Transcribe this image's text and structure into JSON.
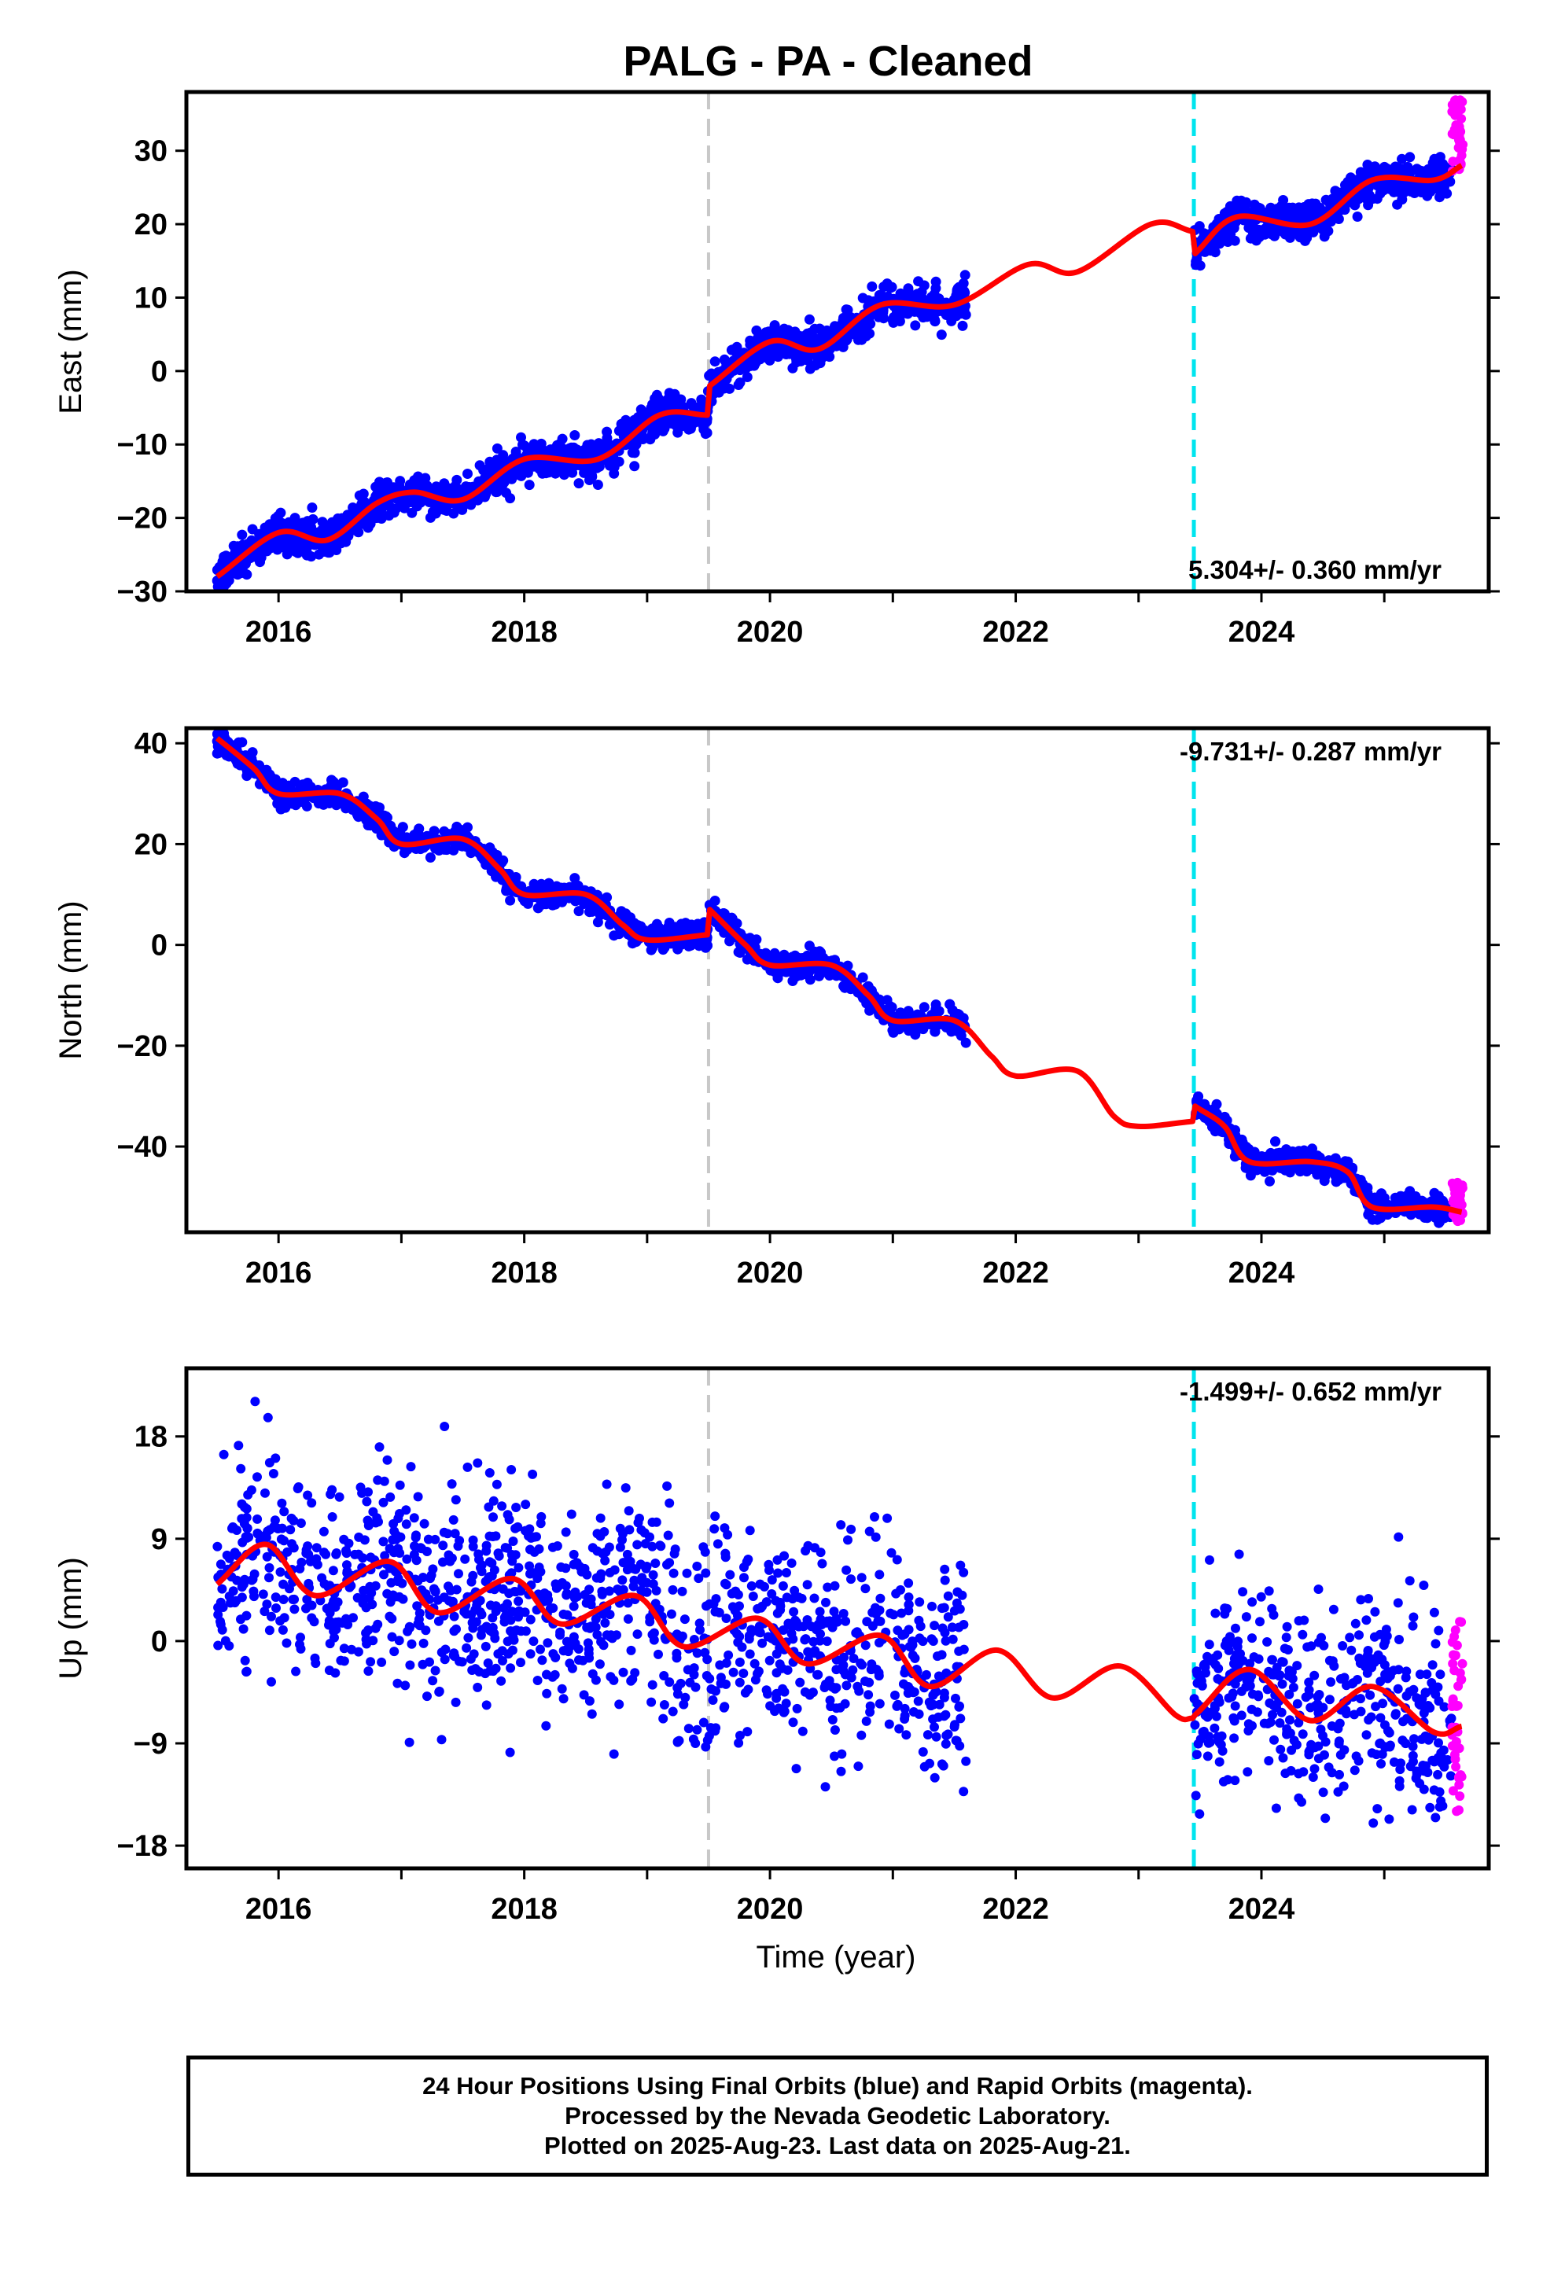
{
  "title": "PALG  - PA - Cleaned",
  "xlabel": "Time (year)",
  "footer": {
    "line1": "24 Hour Positions Using Final Orbits (blue) and Rapid Orbits (magenta).",
    "line2": "Processed by the Nevada Geodetic Laboratory.",
    "line3": "Plotted on 2025-Aug-23. Last data on 2025-Aug-21."
  },
  "colors": {
    "final_orbits": "#0000ff",
    "rapid_orbits": "#ff00ff",
    "model_fit": "#ff0000",
    "event_line_1": "#c8c8c8",
    "event_line_2": "#00e5ee"
  },
  "chart_data": [
    {
      "type": "scatter",
      "component": "east",
      "ylabel": "East (mm)",
      "xlim": [
        2015.25,
        2025.85
      ],
      "ylim": [
        -30,
        38
      ],
      "xticks": [
        2016,
        2018,
        2020,
        2022,
        2024
      ],
      "yticks": [
        -30,
        -20,
        -10,
        0,
        10,
        20,
        30
      ],
      "grid": false,
      "rate_label": "5.304+/- 0.360 mm/yr",
      "rate_label_position": "bottom-right",
      "event_lines": [
        {
          "x": 2019.5,
          "color": "gray"
        },
        {
          "x": 2023.45,
          "color": "cyan"
        }
      ],
      "data_gap": [
        2021.6,
        2023.45
      ],
      "final_orbit_scatter_mm": 1.2,
      "rapid_orbits": {
        "x_range": [
          2025.55,
          2025.64
        ],
        "y_range": [
          27,
          37
        ]
      },
      "model_fit": {
        "x": [
          2015.5,
          2016.0,
          2016.4,
          2016.8,
          2017.1,
          2017.5,
          2018.0,
          2018.6,
          2019.1,
          2019.49,
          2019.51,
          2020.0,
          2020.4,
          2020.9,
          2021.5,
          2022.1,
          2022.5,
          2023.1,
          2023.44,
          2023.46,
          2023.8,
          2024.4,
          2024.9,
          2025.4,
          2025.63
        ],
        "y": [
          -28,
          -22,
          -23,
          -18,
          -16.5,
          -17.5,
          -12,
          -12,
          -6,
          -6,
          -2,
          4,
          3,
          9,
          9,
          14.5,
          13.5,
          20,
          19,
          16,
          21,
          20,
          26,
          26,
          28
        ]
      }
    },
    {
      "type": "scatter",
      "component": "north",
      "ylabel": "North (mm)",
      "xlim": [
        2015.25,
        2025.85
      ],
      "ylim": [
        -57,
        43
      ],
      "xticks": [
        2016,
        2018,
        2020,
        2022,
        2024
      ],
      "yticks": [
        -40,
        -20,
        0,
        20,
        40
      ],
      "grid": false,
      "rate_label": "-9.731+/- 0.287 mm/yr",
      "rate_label_position": "top-right",
      "event_lines": [
        {
          "x": 2019.5,
          "color": "gray"
        },
        {
          "x": 2023.45,
          "color": "cyan"
        }
      ],
      "data_gap": [
        2021.6,
        2023.45
      ],
      "final_orbit_scatter_mm": 1.2,
      "rapid_orbits": {
        "x_range": [
          2025.55,
          2025.64
        ],
        "y_range": [
          -55,
          -46
        ]
      },
      "model_fit": {
        "x": [
          2015.5,
          2015.8,
          2016.0,
          2016.5,
          2016.8,
          2017.0,
          2017.5,
          2017.8,
          2018.0,
          2018.5,
          2018.8,
          2019.0,
          2019.49,
          2019.51,
          2019.8,
          2020.0,
          2020.5,
          2020.8,
          2021.0,
          2021.5,
          2021.8,
          2022.0,
          2022.5,
          2022.8,
          2023.0,
          2023.44,
          2023.46,
          2023.7,
          2023.9,
          2024.4,
          2024.7,
          2024.9,
          2025.4,
          2025.63
        ],
        "y": [
          41,
          35,
          30,
          30,
          25,
          20,
          21,
          15,
          10,
          10,
          4,
          1,
          2,
          7,
          0,
          -4,
          -4,
          -10,
          -15,
          -15,
          -22,
          -26,
          -25,
          -34,
          -36,
          -35,
          -32,
          -36,
          -43,
          -43,
          -45,
          -52,
          -52,
          -53
        ]
      }
    },
    {
      "type": "scatter",
      "component": "up",
      "ylabel": "Up (mm)",
      "xlim": [
        2015.25,
        2025.85
      ],
      "ylim": [
        -20,
        24
      ],
      "xticks": [
        2016,
        2018,
        2020,
        2022,
        2024
      ],
      "yticks": [
        -18,
        -9,
        0,
        9,
        18
      ],
      "grid": false,
      "rate_label": "-1.499+/- 0.652 mm/yr",
      "rate_label_position": "top-right",
      "event_lines": [
        {
          "x": 2019.5,
          "color": "gray"
        },
        {
          "x": 2023.45,
          "color": "cyan"
        }
      ],
      "data_gap": [
        2021.6,
        2023.45
      ],
      "final_orbit_scatter_mm": 4.5,
      "rapid_orbits": {
        "x_range": [
          2025.55,
          2025.64
        ],
        "y_range": [
          -16,
          3
        ]
      },
      "model_fit": {
        "x": [
          2015.5,
          2015.9,
          2016.3,
          2016.9,
          2017.3,
          2017.9,
          2018.3,
          2018.9,
          2019.3,
          2019.9,
          2020.3,
          2020.9,
          2021.3,
          2021.85,
          2022.3,
          2022.85,
          2023.3,
          2023.44,
          2023.46,
          2023.9,
          2024.4,
          2024.9,
          2025.4,
          2025.63
        ],
        "y": [
          5,
          8.5,
          4,
          7,
          2.5,
          5.5,
          1.5,
          4,
          -0.5,
          2,
          -2,
          0.5,
          -4,
          -0.8,
          -5,
          -2.2,
          -6.5,
          -6.8,
          -6.5,
          -2.5,
          -7,
          -4,
          -8,
          -7.5
        ]
      }
    }
  ]
}
